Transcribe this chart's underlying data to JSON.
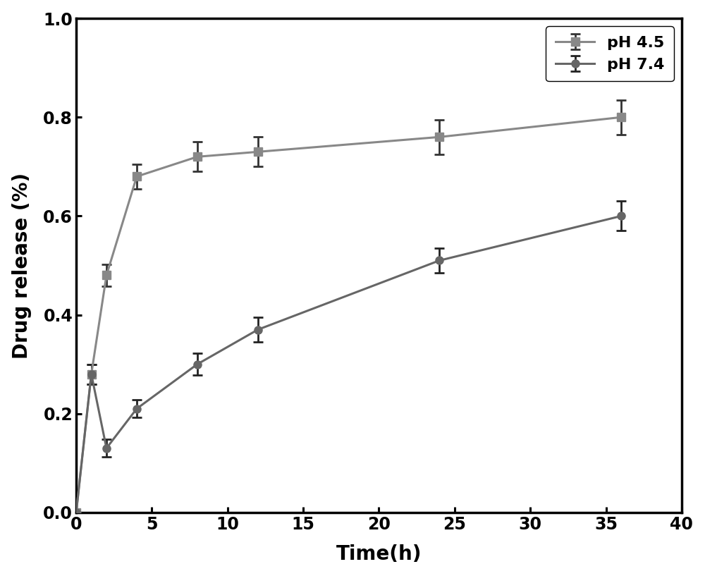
{
  "ph45_x": [
    0,
    1,
    2,
    4,
    8,
    12,
    24,
    36
  ],
  "ph45_y": [
    0.0,
    0.28,
    0.48,
    0.68,
    0.72,
    0.73,
    0.76,
    0.8
  ],
  "ph45_yerr": [
    0.0,
    0.02,
    0.022,
    0.025,
    0.03,
    0.03,
    0.035,
    0.035
  ],
  "ph74_x": [
    0,
    1,
    2,
    4,
    8,
    12,
    24,
    36
  ],
  "ph74_y": [
    0.0,
    0.28,
    0.13,
    0.21,
    0.3,
    0.37,
    0.51,
    0.6
  ],
  "ph74_yerr": [
    0.0,
    0.02,
    0.018,
    0.018,
    0.022,
    0.025,
    0.025,
    0.03
  ],
  "ph45_color": "#888888",
  "ph45_ecolor": "#333333",
  "ph74_color": "#666666",
  "ph74_ecolor": "#222222",
  "xlabel": "Time(h)",
  "ylabel": "Drug release (%)",
  "xlim": [
    0,
    40
  ],
  "ylim": [
    0.0,
    1.0
  ],
  "xticks": [
    0,
    5,
    10,
    15,
    20,
    25,
    30,
    35,
    40
  ],
  "yticks": [
    0.0,
    0.2,
    0.4,
    0.6,
    0.8,
    1.0
  ],
  "legend_ph45": "pH 4.5",
  "legend_ph74": "pH 7.4",
  "figure_width": 10.0,
  "figure_height": 8.17,
  "dpi": 100
}
